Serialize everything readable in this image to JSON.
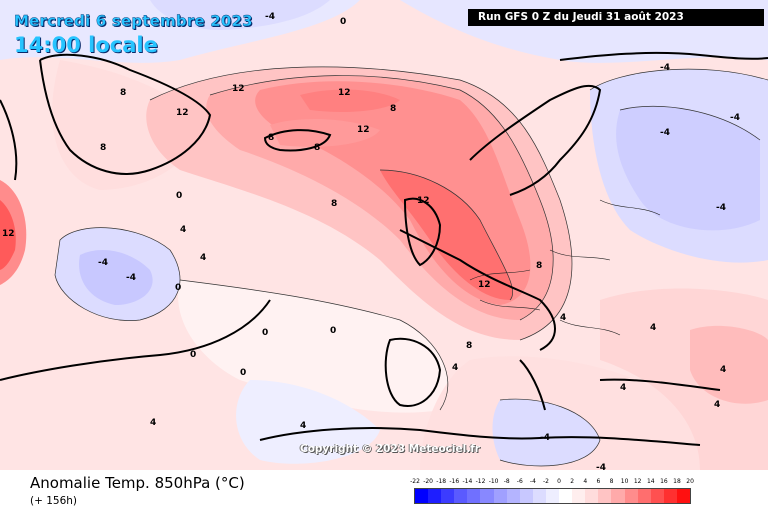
{
  "header": {
    "date": "Mercredi 6 septembre 2023",
    "time": "14:00 locale",
    "run": "Run GFS 0 Z du Jeudi 31 août 2023"
  },
  "footer": {
    "variable": "Anomalie Temp. 850hPa (°C)",
    "lead": "(+ 156h)",
    "copyright": "Copyright © 2023 Meteociel.fr"
  },
  "legend": {
    "labels": [
      "-22",
      "-20",
      "-18",
      "-16",
      "-14",
      "-12",
      "-10",
      "-8",
      "-6",
      "-4",
      "-2",
      "0",
      "2",
      "4",
      "6",
      "8",
      "10",
      "12",
      "14",
      "16",
      "18",
      "20"
    ],
    "colors": [
      "#0000ff",
      "#1e1eff",
      "#3c3cff",
      "#5a5aff",
      "#7070ff",
      "#8888ff",
      "#a0a0ff",
      "#b4b4ff",
      "#c8c8ff",
      "#dcdcff",
      "#eeeeff",
      "#ffffff",
      "#ffeeee",
      "#ffdcdc",
      "#ffc4c4",
      "#ffaaaa",
      "#ff8c8c",
      "#ff6e6e",
      "#ff5050",
      "#ff3030",
      "#ff1010"
    ]
  },
  "contour_labels": [
    "12",
    "12",
    "12",
    "8",
    "8",
    "8",
    "8",
    "12",
    "12",
    "8",
    "8",
    "4",
    "4",
    "4",
    "4",
    "0",
    "0",
    "0",
    "0",
    "0",
    "4",
    "4",
    "4",
    "-4",
    "-4",
    "-4",
    "-4",
    "-4",
    "12",
    "12",
    "8",
    "8",
    "4",
    "4",
    "0",
    "0",
    "4",
    "-4",
    "-4",
    "-4",
    "-4"
  ]
}
